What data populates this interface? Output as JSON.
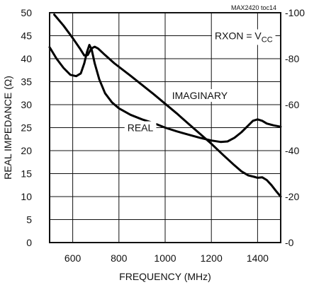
{
  "chart_data": {
    "type": "line",
    "xlabel": "FREQUENCY (MHz)",
    "ylabel": "REAL IMPEDANCE (Ω)",
    "xlim": [
      500,
      1500
    ],
    "ylim": [
      0,
      50
    ],
    "y2lim": [
      0,
      -100
    ],
    "x_ticks": [
      600,
      800,
      1000,
      1200,
      1400
    ],
    "y_ticks": [
      0,
      5,
      10,
      15,
      20,
      25,
      30,
      35,
      40,
      45,
      50
    ],
    "y2_ticks": [
      "-0",
      "-20",
      "-40",
      "-60",
      "-80",
      "-100"
    ],
    "grid": true,
    "figure_id": "MAX2420 toc14",
    "condition_label": "RXON = V",
    "condition_subscript": "CC",
    "series": [
      {
        "name": "REAL",
        "axis": "left",
        "label_at": [
          1000,
          25
        ],
        "points": [
          [
            500,
            42.5
          ],
          [
            530,
            40
          ],
          [
            560,
            38
          ],
          [
            590,
            36.5
          ],
          [
            615,
            36.2
          ],
          [
            635,
            36.8
          ],
          [
            650,
            39
          ],
          [
            662,
            41.5
          ],
          [
            672,
            43
          ],
          [
            682,
            42
          ],
          [
            695,
            39
          ],
          [
            715,
            35.5
          ],
          [
            740,
            32.5
          ],
          [
            770,
            30.5
          ],
          [
            800,
            29.2
          ],
          [
            850,
            27.8
          ],
          [
            900,
            26.8
          ],
          [
            950,
            26
          ],
          [
            1000,
            25
          ],
          [
            1050,
            24.2
          ],
          [
            1100,
            23.5
          ],
          [
            1150,
            22.8
          ],
          [
            1200,
            22.2
          ],
          [
            1240,
            21.9
          ],
          [
            1270,
            22
          ],
          [
            1300,
            22.8
          ],
          [
            1330,
            24
          ],
          [
            1360,
            25.5
          ],
          [
            1380,
            26.5
          ],
          [
            1400,
            26.8
          ],
          [
            1420,
            26.5
          ],
          [
            1440,
            25.9
          ],
          [
            1470,
            25.5
          ],
          [
            1500,
            25.2
          ]
        ]
      },
      {
        "name": "IMAGINARY",
        "axis": "left",
        "label_at": [
          1150,
          32
        ],
        "points": [
          [
            520,
            49.6
          ],
          [
            560,
            47.2
          ],
          [
            600,
            44.5
          ],
          [
            630,
            42.3
          ],
          [
            650,
            40.7
          ],
          [
            665,
            40.8
          ],
          [
            680,
            42.2
          ],
          [
            695,
            42.6
          ],
          [
            710,
            42.2
          ],
          [
            740,
            40.8
          ],
          [
            780,
            39
          ],
          [
            850,
            36.3
          ],
          [
            900,
            34.3
          ],
          [
            950,
            32.3
          ],
          [
            1000,
            30.2
          ],
          [
            1050,
            28.1
          ],
          [
            1100,
            25.9
          ],
          [
            1150,
            23.7
          ],
          [
            1200,
            21.5
          ],
          [
            1250,
            19.1
          ],
          [
            1300,
            16.8
          ],
          [
            1330,
            15.5
          ],
          [
            1360,
            14.6
          ],
          [
            1385,
            14.3
          ],
          [
            1400,
            14.1
          ],
          [
            1420,
            14.2
          ],
          [
            1440,
            13.6
          ],
          [
            1460,
            12.5
          ],
          [
            1480,
            11.2
          ],
          [
            1500,
            10
          ]
        ]
      }
    ]
  }
}
